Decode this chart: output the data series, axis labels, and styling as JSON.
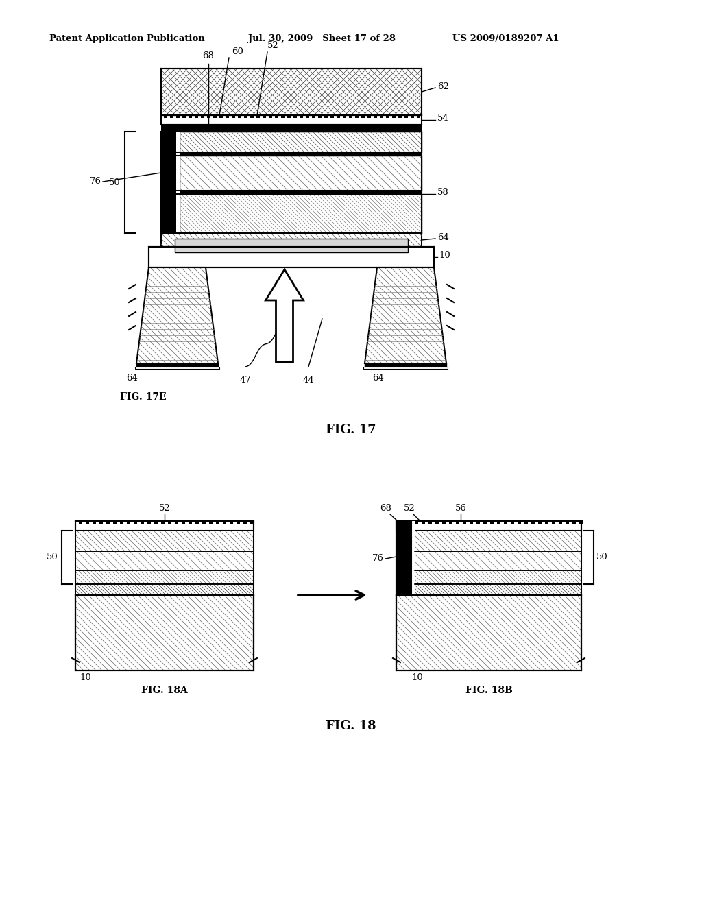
{
  "header_left": "Patent Application Publication",
  "header_mid": "Jul. 30, 2009   Sheet 17 of 28",
  "header_right": "US 2009/0189207 A1",
  "fig17_title": "FIG. 17",
  "fig17_sub": "FIG. 17E",
  "fig18_title": "FIG. 18",
  "fig18a_title": "FIG. 18A",
  "fig18b_title": "FIG. 18B",
  "bg_color": "#ffffff",
  "line_color": "#000000"
}
